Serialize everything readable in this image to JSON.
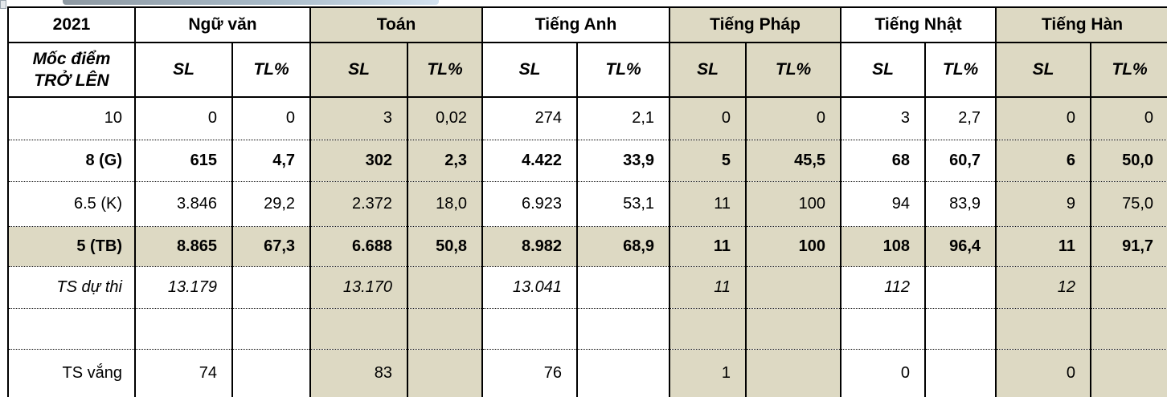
{
  "table": {
    "corner_year": "2021",
    "row_header_lines": [
      "Mốc điểm",
      "TRỞ LÊN"
    ],
    "sub_columns": [
      "SL",
      "TL%"
    ],
    "subjects": [
      {
        "name": "Ngữ văn",
        "shaded": false
      },
      {
        "name": "Toán",
        "shaded": true
      },
      {
        "name": "Tiếng Anh",
        "shaded": false
      },
      {
        "name": "Tiếng Pháp",
        "shaded": true
      },
      {
        "name": "Tiếng Nhật",
        "shaded": false
      },
      {
        "name": "Tiếng Hàn",
        "shaded": true
      }
    ],
    "rows": [
      {
        "label": "10",
        "bold": false,
        "italic": false,
        "shaded_row": false,
        "values": [
          "0",
          "0",
          "3",
          "0,02",
          "274",
          "2,1",
          "0",
          "0",
          "3",
          "2,7",
          "0",
          "0"
        ]
      },
      {
        "label": "8 (G)",
        "bold": true,
        "italic": false,
        "shaded_row": false,
        "values": [
          "615",
          "4,7",
          "302",
          "2,3",
          "4.422",
          "33,9",
          "5",
          "45,5",
          "68",
          "60,7",
          "6",
          "50,0"
        ]
      },
      {
        "label": "6.5 (K)",
        "bold": false,
        "italic": false,
        "shaded_row": false,
        "values": [
          "3.846",
          "29,2",
          "2.372",
          "18,0",
          "6.923",
          "53,1",
          "11",
          "100",
          "94",
          "83,9",
          "9",
          "75,0"
        ]
      },
      {
        "label": "5 (TB)",
        "bold": true,
        "italic": false,
        "shaded_row": true,
        "values": [
          "8.865",
          "67,3",
          "6.688",
          "50,8",
          "8.982",
          "68,9",
          "11",
          "100",
          "108",
          "96,4",
          "11",
          "91,7"
        ]
      },
      {
        "label": "TS dự thi",
        "bold": false,
        "italic": true,
        "shaded_row": false,
        "values": [
          "13.179",
          "",
          "13.170",
          "",
          "13.041",
          "",
          "11",
          "",
          "112",
          "",
          "12",
          ""
        ]
      },
      {
        "label": "",
        "bold": false,
        "italic": false,
        "shaded_row": false,
        "values": [
          "",
          "",
          "",
          "",
          "",
          "",
          "",
          "",
          "",
          "",
          "",
          ""
        ]
      },
      {
        "label": "TS vắng",
        "bold": false,
        "italic": false,
        "shaded_row": false,
        "values": [
          "74",
          "",
          "83",
          "",
          "76",
          "",
          "1",
          "",
          "0",
          "",
          "0",
          ""
        ]
      }
    ]
  },
  "artifacts": {
    "corner_icon": "sheet-corner-icon",
    "scrollbar_thumb_icon": "horizontal-scrollbar-thumb"
  },
  "colors": {
    "shaded_bg": "#DDD9C3",
    "border": "#000000",
    "scrollbar_start": "#8E99A2",
    "scrollbar_mid": "#A8BAC8",
    "scrollbar_end": "#D3E2EF"
  }
}
